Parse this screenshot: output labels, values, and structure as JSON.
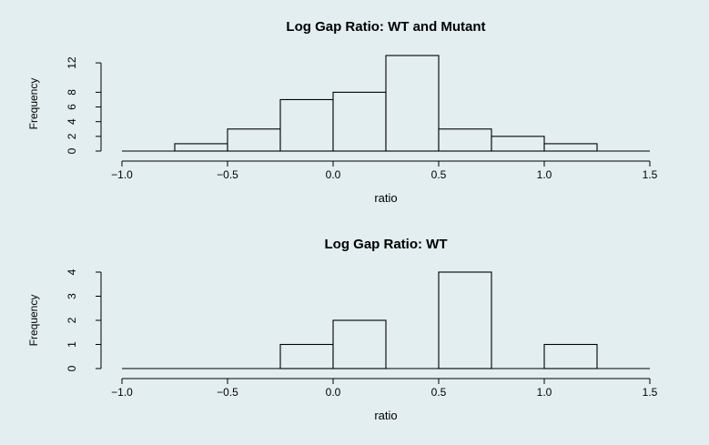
{
  "background_color": "#e3eef0",
  "bar_fill": "#e3eef0",
  "line_color": "#000000",
  "chart_data": [
    {
      "type": "bar",
      "title": "Log Gap Ratio: WT and Mutant",
      "xlabel": "ratio",
      "ylabel": "Frequency",
      "bin_edges": [
        -1.0,
        -0.75,
        -0.5,
        -0.25,
        0.0,
        0.25,
        0.5,
        0.75,
        1.0,
        1.25,
        1.5
      ],
      "values": [
        0,
        1,
        3,
        7,
        8,
        13,
        3,
        2,
        1,
        0
      ],
      "xlim": [
        -1.0,
        1.5
      ],
      "ylim": [
        0,
        13
      ],
      "xticks": [
        -1.0,
        -0.5,
        0.0,
        0.5,
        1.0,
        1.5
      ],
      "xtick_labels": [
        "−1.0",
        "−0.5",
        "0.0",
        "0.5",
        "1.0",
        "1.5"
      ],
      "yticks": [
        0,
        2,
        4,
        6,
        8,
        12
      ],
      "ytick_labels": [
        "0",
        "2",
        "4",
        "6",
        "8",
        "12"
      ],
      "grid": false
    },
    {
      "type": "bar",
      "title": "Log Gap Ratio: WT",
      "xlabel": "ratio",
      "ylabel": "Frequency",
      "bin_edges": [
        -1.0,
        -0.75,
        -0.5,
        -0.25,
        0.0,
        0.25,
        0.5,
        0.75,
        1.0,
        1.25,
        1.5
      ],
      "values": [
        0,
        0,
        0,
        1,
        2,
        0,
        4,
        0,
        1,
        0
      ],
      "xlim": [
        -1.0,
        1.5
      ],
      "ylim": [
        0,
        4
      ],
      "xticks": [
        -1.0,
        -0.5,
        0.0,
        0.5,
        1.0,
        1.5
      ],
      "xtick_labels": [
        "−1.0",
        "−0.5",
        "0.0",
        "0.5",
        "1.0",
        "1.5"
      ],
      "yticks": [
        0,
        1,
        2,
        3,
        4
      ],
      "ytick_labels": [
        "0",
        "1",
        "2",
        "3",
        "4"
      ],
      "grid": false
    }
  ]
}
